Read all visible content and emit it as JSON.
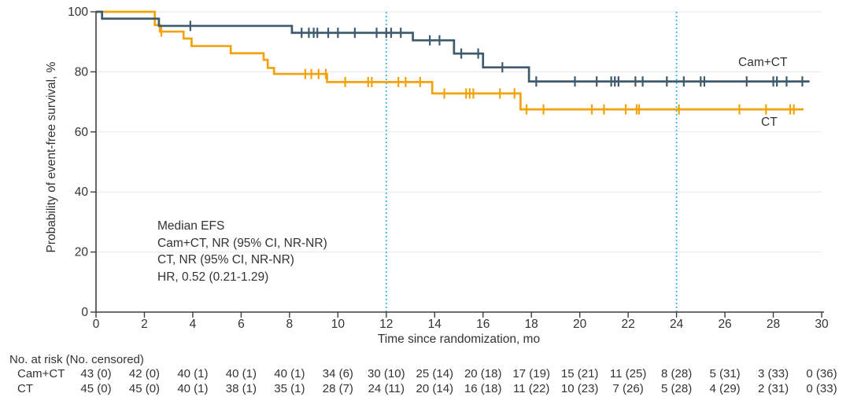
{
  "chart_data": {
    "type": "line",
    "subtype": "kaplan-meier-step",
    "title": "",
    "xlabel": "Time since randomization, mo",
    "ylabel": "Probability of event-free survival, %",
    "xlim": [
      0,
      30
    ],
    "ylim": [
      0,
      100
    ],
    "xticks": [
      0,
      2,
      4,
      6,
      8,
      10,
      12,
      14,
      16,
      18,
      20,
      22,
      24,
      26,
      28,
      30
    ],
    "yticks": [
      0,
      20,
      40,
      60,
      80,
      100
    ],
    "grid": true,
    "reference_lines_x": [
      12,
      24
    ],
    "reference_line_color": "#36B3E7",
    "grid_color": "#E8E8E8",
    "axis_color": "#3E3E3E",
    "series": [
      {
        "name": "Cam+CT",
        "color": "#3F5A6C",
        "steps": [
          [
            0,
            100
          ],
          [
            0.25,
            97.7
          ],
          [
            2.6,
            95.3
          ],
          [
            8.1,
            93.0
          ],
          [
            13.1,
            90.5
          ],
          [
            14.8,
            86.1
          ],
          [
            16.0,
            81.5
          ],
          [
            17.9,
            76.8
          ],
          [
            29.5,
            76.8
          ]
        ],
        "censors": [
          [
            3.9,
            95.3
          ],
          [
            8.5,
            93.0
          ],
          [
            8.8,
            93.0
          ],
          [
            9.0,
            93.0
          ],
          [
            9.15,
            93.0
          ],
          [
            9.6,
            93.0
          ],
          [
            10.0,
            93.0
          ],
          [
            10.7,
            93.0
          ],
          [
            11.6,
            93.0
          ],
          [
            12.0,
            93.0
          ],
          [
            12.2,
            93.0
          ],
          [
            12.6,
            93.0
          ],
          [
            13.8,
            90.5
          ],
          [
            14.2,
            90.5
          ],
          [
            15.1,
            86.1
          ],
          [
            15.8,
            86.1
          ],
          [
            16.8,
            81.5
          ],
          [
            18.2,
            76.8
          ],
          [
            19.8,
            76.8
          ],
          [
            20.7,
            76.8
          ],
          [
            21.3,
            76.8
          ],
          [
            21.45,
            76.8
          ],
          [
            21.6,
            76.8
          ],
          [
            22.3,
            76.8
          ],
          [
            22.6,
            76.8
          ],
          [
            23.6,
            76.8
          ],
          [
            24.3,
            76.8
          ],
          [
            25.0,
            76.8
          ],
          [
            25.15,
            76.8
          ],
          [
            26.9,
            76.8
          ],
          [
            28.0,
            76.8
          ],
          [
            28.15,
            76.8
          ],
          [
            28.55,
            76.8
          ],
          [
            29.2,
            76.8
          ]
        ]
      },
      {
        "name": "CT",
        "color": "#F2A30B",
        "steps": [
          [
            0,
            100
          ],
          [
            2.43,
            95.6
          ],
          [
            2.64,
            93.4
          ],
          [
            3.62,
            91.1
          ],
          [
            3.95,
            88.6
          ],
          [
            5.57,
            86.2
          ],
          [
            6.93,
            84.0
          ],
          [
            7.1,
            81.3
          ],
          [
            7.36,
            79.3
          ],
          [
            9.55,
            76.6
          ],
          [
            13.9,
            72.8
          ],
          [
            17.55,
            67.5
          ],
          [
            29.25,
            67.5
          ]
        ],
        "censors": [
          [
            2.7,
            93.4
          ],
          [
            8.65,
            79.3
          ],
          [
            8.9,
            79.3
          ],
          [
            9.2,
            79.3
          ],
          [
            9.5,
            79.3
          ],
          [
            10.3,
            76.6
          ],
          [
            11.25,
            76.6
          ],
          [
            11.4,
            76.6
          ],
          [
            12.5,
            76.6
          ],
          [
            12.8,
            76.6
          ],
          [
            13.4,
            76.6
          ],
          [
            14.4,
            72.8
          ],
          [
            15.3,
            72.8
          ],
          [
            15.45,
            72.8
          ],
          [
            15.6,
            72.8
          ],
          [
            16.7,
            72.8
          ],
          [
            17.3,
            72.8
          ],
          [
            17.8,
            67.5
          ],
          [
            18.5,
            67.5
          ],
          [
            20.5,
            67.5
          ],
          [
            21.0,
            67.5
          ],
          [
            21.9,
            67.5
          ],
          [
            22.35,
            67.5
          ],
          [
            22.45,
            67.5
          ],
          [
            24.1,
            67.5
          ],
          [
            26.6,
            67.5
          ],
          [
            27.7,
            67.5
          ],
          [
            28.7,
            67.5
          ],
          [
            28.85,
            67.5
          ]
        ]
      }
    ],
    "annotation": {
      "lines": [
        "Median EFS",
        "Cam+CT, NR (95% CI, NR-NR)",
        "CT, NR (95% CI, NR-NR)",
        "HR, 0.52 (0.21-1.29)"
      ]
    },
    "risk_table": {
      "header": "No. at risk (No. censored)",
      "times": [
        0,
        2,
        4,
        6,
        8,
        10,
        12,
        14,
        16,
        18,
        20,
        22,
        24,
        26,
        28,
        30
      ],
      "rows": [
        {
          "label": "Cam+CT",
          "values": [
            "43 (0)",
            "42 (0)",
            "40 (1)",
            "40 (1)",
            "40 (1)",
            "34 (6)",
            "30 (10)",
            "25 (14)",
            "20 (18)",
            "17 (19)",
            "15 (21)",
            "11 (25)",
            "8 (28)",
            "5 (31)",
            "3 (33)",
            "0 (36)"
          ]
        },
        {
          "label": "CT",
          "values": [
            "45 (0)",
            "45 (0)",
            "40 (1)",
            "38 (1)",
            "35 (1)",
            "28 (7)",
            "24 (11)",
            "20 (14)",
            "16 (18)",
            "11 (22)",
            "10 (23)",
            "7 (26)",
            "5 (28)",
            "4 (29)",
            "2 (31)",
            "0 (33)"
          ]
        }
      ]
    }
  }
}
